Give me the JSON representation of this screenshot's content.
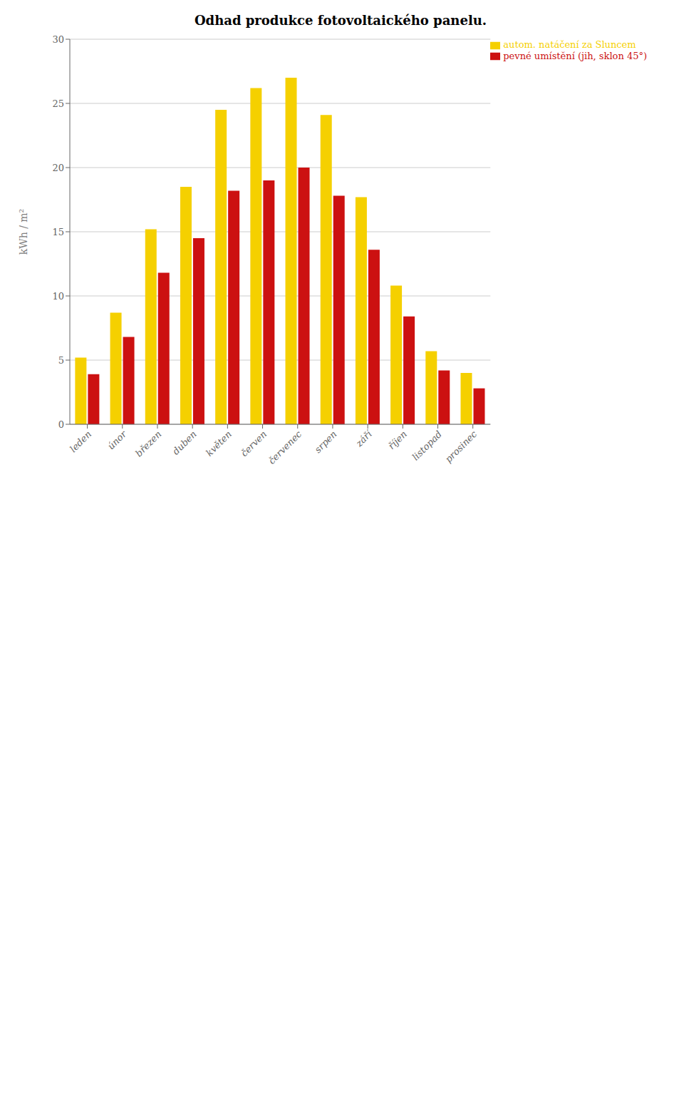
{
  "chart_data": {
    "type": "bar",
    "title": "Odhad produkce fotovoltaického panelu.",
    "categories": [
      "leden",
      "únor",
      "březen",
      "duben",
      "květen",
      "červen",
      "červenec",
      "srpen",
      "září",
      "říjen",
      "listopad",
      "prosinec"
    ],
    "series": [
      {
        "name": "autom. natáčení za Sluncem",
        "color": "#F5D000",
        "values": [
          5.2,
          8.7,
          15.2,
          18.5,
          24.5,
          26.2,
          27.0,
          24.1,
          17.7,
          10.8,
          5.7,
          4.0
        ]
      },
      {
        "name": "pevné umístění (jih, sklon 45°)",
        "color": "#CC1111",
        "values": [
          3.9,
          6.8,
          11.8,
          14.5,
          18.2,
          19.0,
          20.0,
          17.8,
          13.6,
          8.4,
          4.2,
          2.8
        ]
      }
    ],
    "y_label": "kWh / m²",
    "ylim": [
      0,
      30
    ],
    "yticks": [
      0,
      5,
      10,
      15,
      20,
      25,
      30
    ],
    "grid": true,
    "legend": "upper right"
  }
}
